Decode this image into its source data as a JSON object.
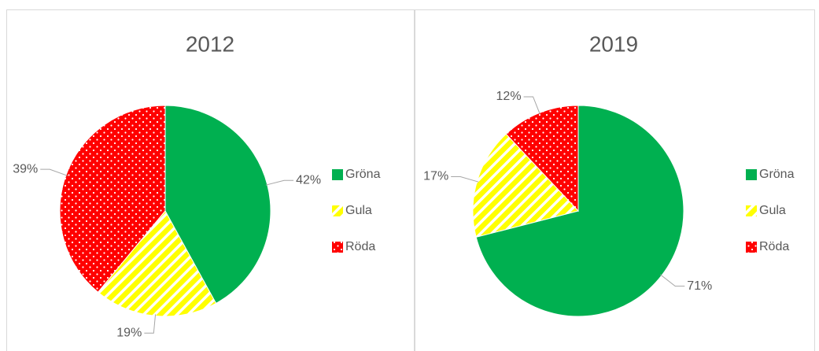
{
  "chart_data": [
    {
      "type": "pie",
      "title": "2012",
      "categories": [
        "Gröna",
        "Gula",
        "Röda"
      ],
      "values": [
        42,
        19,
        39
      ],
      "value_labels": [
        "42%",
        "19%",
        "39%"
      ],
      "colors": [
        "#00b050",
        "#ffff00",
        "#ff0000"
      ],
      "legend": "right"
    },
    {
      "type": "pie",
      "title": "2019",
      "categories": [
        "Gröna",
        "Gula",
        "Röda"
      ],
      "values": [
        71,
        17,
        12
      ],
      "value_labels": [
        "71%",
        "17%",
        "12%"
      ],
      "colors": [
        "#00b050",
        "#ffff00",
        "#ff0000"
      ],
      "legend": "right"
    }
  ]
}
